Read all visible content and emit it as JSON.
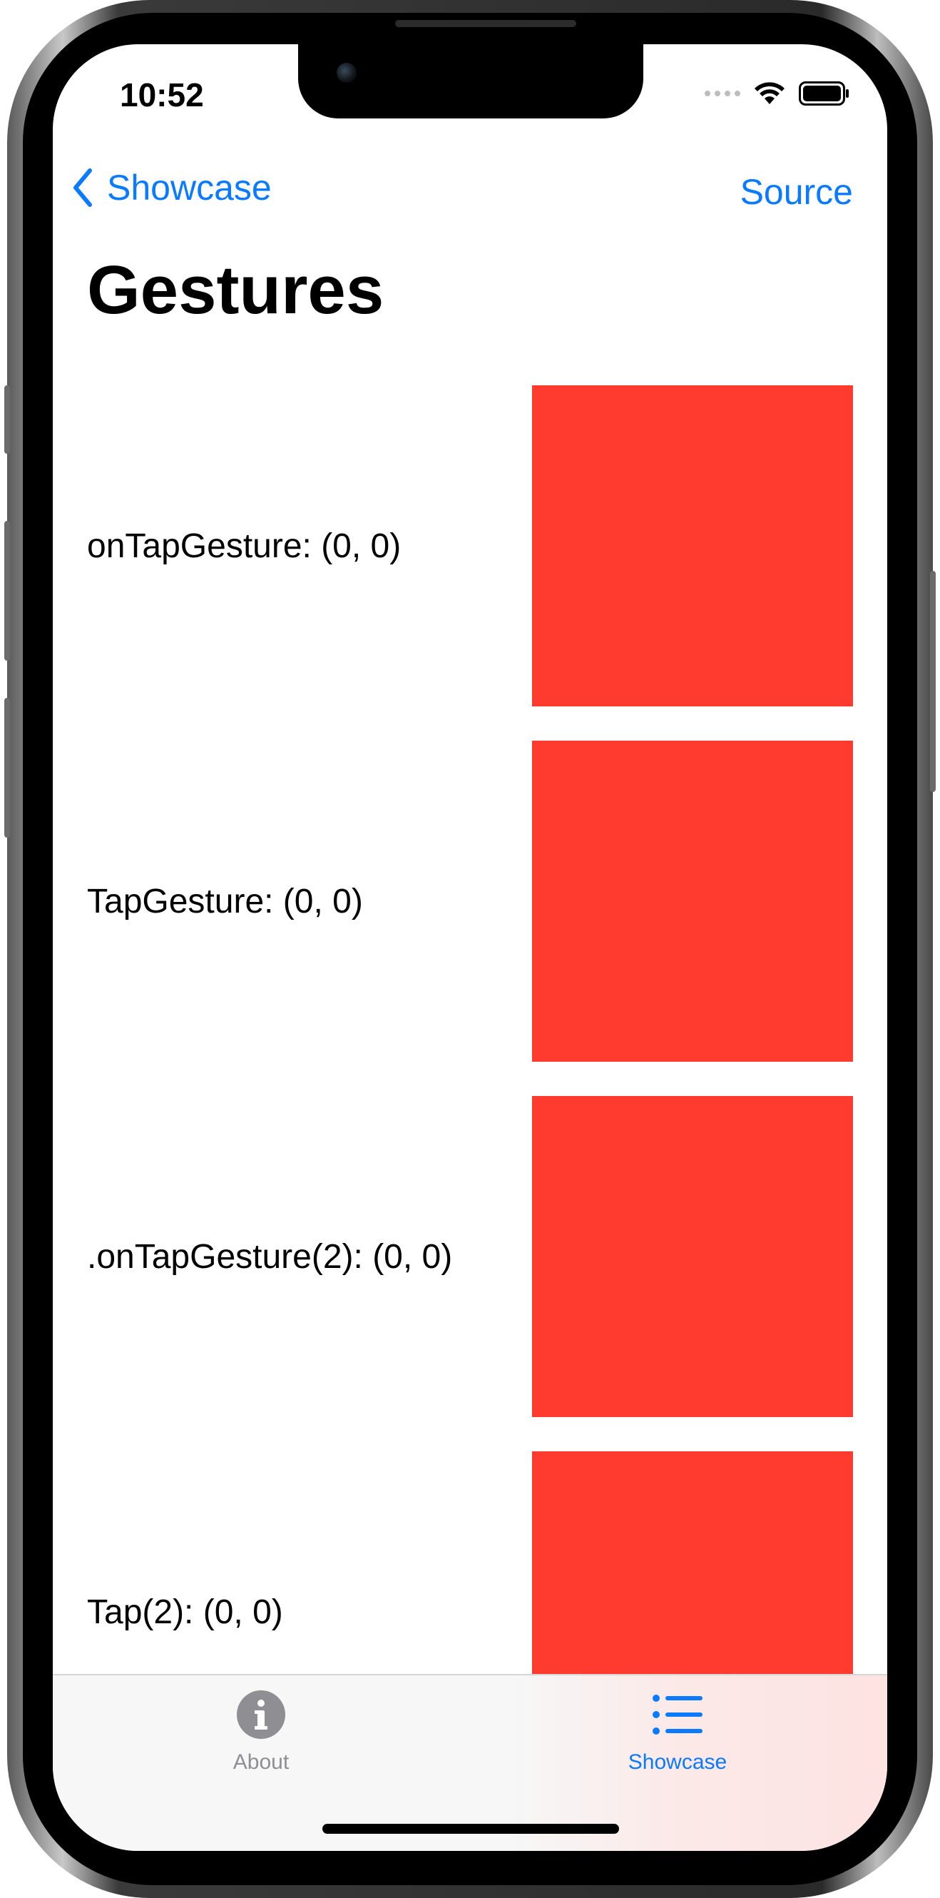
{
  "status_bar": {
    "time": "10:52"
  },
  "nav": {
    "back_label": "Showcase",
    "action_label": "Source"
  },
  "page": {
    "title": "Gestures"
  },
  "rows": [
    {
      "label": "onTapGesture: (0, 0)"
    },
    {
      "label": "TapGesture: (0, 0)"
    },
    {
      "label": ".onTapGesture(2): (0, 0)"
    },
    {
      "label": "Tap(2): (0, 0)"
    }
  ],
  "tabbar": {
    "tabs": [
      {
        "label": "About",
        "icon": "info-circle-icon",
        "selected": false
      },
      {
        "label": "Showcase",
        "icon": "list-icon",
        "selected": true
      }
    ]
  },
  "colors": {
    "accent": "#0a7aff",
    "box": "#ff3b30",
    "inactive": "#8e8e93"
  }
}
